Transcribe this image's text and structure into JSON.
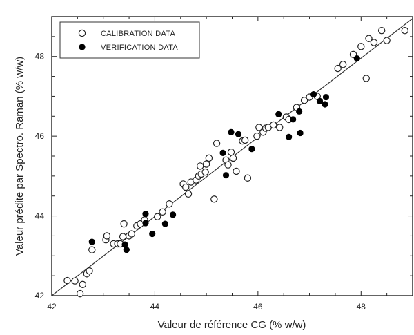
{
  "chart_data": {
    "type": "scatter",
    "title": "",
    "xlabel": "Valeur de référence CG (% w/w)",
    "ylabel": "Valeur prédite par Spectro. Raman (% w/w)",
    "xlim": [
      42,
      49
    ],
    "ylim": [
      42,
      49
    ],
    "xticks": [
      42,
      44,
      46,
      48
    ],
    "yticks": [
      42,
      44,
      46,
      48
    ],
    "grid": false,
    "legend_position": "top-left",
    "fit_line": {
      "x": [
        42,
        49
      ],
      "y": [
        42,
        48.95
      ]
    },
    "series": [
      {
        "name": "CALIBRATION DATA",
        "marker": "open-circle",
        "points": [
          [
            42.3,
            42.38
          ],
          [
            42.45,
            42.37
          ],
          [
            42.55,
            42.05
          ],
          [
            42.6,
            42.28
          ],
          [
            42.68,
            42.55
          ],
          [
            42.73,
            42.62
          ],
          [
            42.78,
            43.15
          ],
          [
            43.05,
            43.4
          ],
          [
            43.07,
            43.5
          ],
          [
            43.2,
            43.3
          ],
          [
            43.28,
            43.3
          ],
          [
            43.33,
            43.3
          ],
          [
            43.38,
            43.48
          ],
          [
            43.4,
            43.8
          ],
          [
            43.5,
            43.5
          ],
          [
            43.55,
            43.55
          ],
          [
            43.65,
            43.75
          ],
          [
            43.72,
            43.8
          ],
          [
            43.8,
            43.9
          ],
          [
            44.05,
            43.98
          ],
          [
            44.15,
            44.1
          ],
          [
            44.28,
            44.3
          ],
          [
            44.55,
            44.8
          ],
          [
            44.6,
            44.72
          ],
          [
            44.65,
            44.55
          ],
          [
            44.7,
            44.85
          ],
          [
            44.8,
            44.9
          ],
          [
            44.85,
            45.0
          ],
          [
            44.88,
            45.25
          ],
          [
            44.9,
            45.05
          ],
          [
            44.98,
            45.1
          ],
          [
            45.0,
            45.3
          ],
          [
            45.05,
            45.45
          ],
          [
            45.15,
            44.42
          ],
          [
            45.2,
            45.82
          ],
          [
            45.38,
            45.4
          ],
          [
            45.42,
            45.28
          ],
          [
            45.48,
            45.6
          ],
          [
            45.52,
            45.45
          ],
          [
            45.58,
            45.12
          ],
          [
            45.7,
            45.88
          ],
          [
            45.75,
            45.9
          ],
          [
            45.8,
            44.95
          ],
          [
            45.98,
            46.0
          ],
          [
            46.02,
            46.22
          ],
          [
            46.1,
            46.1
          ],
          [
            46.15,
            46.2
          ],
          [
            46.2,
            46.22
          ],
          [
            46.3,
            46.28
          ],
          [
            46.42,
            46.22
          ],
          [
            46.55,
            46.48
          ],
          [
            46.6,
            46.42
          ],
          [
            46.75,
            46.72
          ],
          [
            46.9,
            46.9
          ],
          [
            47.0,
            46.98
          ],
          [
            47.15,
            47.0
          ],
          [
            47.55,
            47.7
          ],
          [
            47.65,
            47.8
          ],
          [
            47.85,
            48.05
          ],
          [
            48.0,
            48.25
          ],
          [
            48.1,
            47.45
          ],
          [
            48.15,
            48.45
          ],
          [
            48.25,
            48.35
          ],
          [
            48.4,
            48.65
          ],
          [
            48.5,
            48.4
          ],
          [
            48.85,
            48.65
          ]
        ]
      },
      {
        "name": "VERIFICATION DATA",
        "marker": "filled-circle",
        "points": [
          [
            42.78,
            43.35
          ],
          [
            43.42,
            43.28
          ],
          [
            43.45,
            43.15
          ],
          [
            43.82,
            43.82
          ],
          [
            43.82,
            44.05
          ],
          [
            43.95,
            43.55
          ],
          [
            44.2,
            43.8
          ],
          [
            44.35,
            44.03
          ],
          [
            45.32,
            45.58
          ],
          [
            45.38,
            45.02
          ],
          [
            45.48,
            46.1
          ],
          [
            45.62,
            46.05
          ],
          [
            45.88,
            45.68
          ],
          [
            46.4,
            46.55
          ],
          [
            46.6,
            45.98
          ],
          [
            46.68,
            46.42
          ],
          [
            46.8,
            46.62
          ],
          [
            46.82,
            46.08
          ],
          [
            47.08,
            47.05
          ],
          [
            47.2,
            46.88
          ],
          [
            47.3,
            46.8
          ],
          [
            47.32,
            46.98
          ],
          [
            47.92,
            47.95
          ]
        ]
      }
    ]
  }
}
